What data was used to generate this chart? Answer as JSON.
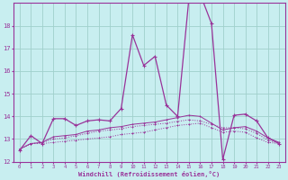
{
  "xlabel": "Windchill (Refroidissement éolien,°C)",
  "background_color": "#c8eef0",
  "grid_color": "#a0d0cc",
  "line_color": "#993399",
  "xlim": [
    -0.5,
    23.5
  ],
  "ylim": [
    12,
    19
  ],
  "yticks": [
    12,
    13,
    14,
    15,
    16,
    17,
    18
  ],
  "xticks": [
    0,
    1,
    2,
    3,
    4,
    5,
    6,
    7,
    8,
    9,
    10,
    11,
    12,
    13,
    14,
    15,
    16,
    17,
    18,
    19,
    20,
    21,
    22,
    23
  ],
  "s1_x": [
    0,
    1,
    2,
    3,
    4,
    5,
    6,
    7,
    8,
    9,
    10,
    11,
    12,
    13,
    14,
    15,
    16,
    17,
    18,
    19,
    20,
    21,
    22,
    23
  ],
  "s1_y": [
    12.5,
    13.15,
    12.8,
    13.9,
    13.9,
    13.6,
    13.8,
    13.85,
    13.8,
    14.35,
    17.6,
    16.25,
    16.65,
    14.5,
    14.0,
    19.2,
    19.4,
    18.1,
    12.1,
    14.05,
    14.1,
    13.8,
    13.05,
    12.8
  ],
  "s2_x": [
    0,
    1,
    2,
    3,
    4,
    5,
    6,
    7,
    8,
    9,
    10,
    11,
    12,
    13,
    14,
    15,
    16,
    17,
    18,
    19,
    20,
    21,
    22,
    23
  ],
  "s2_y": [
    12.55,
    12.8,
    12.8,
    12.85,
    12.9,
    12.95,
    13.0,
    13.05,
    13.1,
    13.2,
    13.25,
    13.3,
    13.4,
    13.5,
    13.6,
    13.65,
    13.7,
    13.5,
    13.3,
    13.35,
    13.3,
    13.05,
    12.85,
    12.8
  ],
  "s3_x": [
    0,
    1,
    2,
    3,
    4,
    5,
    6,
    7,
    8,
    9,
    10,
    11,
    12,
    13,
    14,
    15,
    16,
    17,
    18,
    19,
    20,
    21,
    22,
    23
  ],
  "s3_y": [
    12.55,
    12.8,
    12.85,
    13.0,
    13.05,
    13.15,
    13.25,
    13.35,
    13.4,
    13.45,
    13.55,
    13.6,
    13.65,
    13.7,
    13.78,
    13.85,
    13.8,
    13.65,
    13.5,
    13.5,
    13.45,
    13.25,
    12.95,
    12.8
  ],
  "s4_x": [
    0,
    1,
    2,
    3,
    4,
    5,
    6,
    7,
    8,
    9,
    10,
    11,
    12,
    13,
    14,
    15,
    16,
    17,
    18,
    19,
    20,
    21,
    22,
    23
  ],
  "s4_y": [
    12.55,
    12.8,
    12.85,
    13.1,
    13.15,
    13.2,
    13.35,
    13.4,
    13.5,
    13.55,
    13.65,
    13.7,
    13.75,
    13.85,
    13.95,
    14.05,
    14.0,
    13.7,
    13.4,
    13.5,
    13.55,
    13.35,
    13.05,
    12.85
  ]
}
